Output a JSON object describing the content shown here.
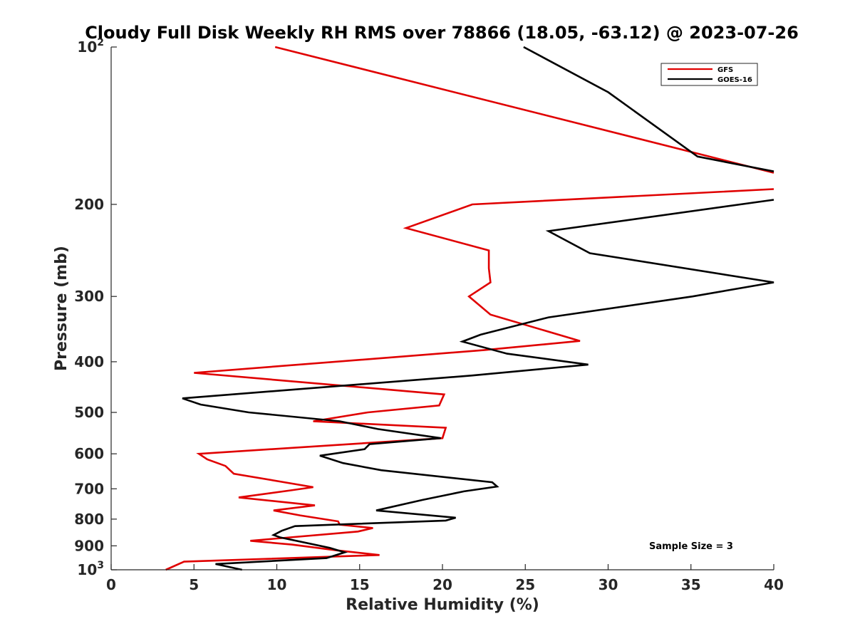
{
  "chart_data": {
    "type": "line",
    "title": "Cloudy Full Disk Weekly RH RMS over 78866 (18.05, -63.12) @ 2023-07-26",
    "xlabel": "Relative Humidity (%)",
    "ylabel": "Pressure (mb)",
    "xlim": [
      0,
      40
    ],
    "ylim": [
      100,
      1000
    ],
    "yscale": "log",
    "y_direction": "reverse",
    "x_ticks": [
      "0",
      "5",
      "10",
      "15",
      "20",
      "25",
      "30",
      "35",
      "40"
    ],
    "x_tick_values": [
      0,
      5,
      10,
      15,
      20,
      25,
      30,
      35,
      40
    ],
    "y_ticks": [
      {
        "value": 100,
        "base": "10",
        "exp": "2"
      },
      {
        "value": 200,
        "label": "200"
      },
      {
        "value": 300,
        "label": "300"
      },
      {
        "value": 400,
        "label": "400"
      },
      {
        "value": 500,
        "label": "500"
      },
      {
        "value": 600,
        "label": "600"
      },
      {
        "value": 700,
        "label": "700"
      },
      {
        "value": 800,
        "label": "800"
      },
      {
        "value": 900,
        "label": "900"
      },
      {
        "value": 1000,
        "base": "10",
        "exp": "3"
      }
    ],
    "legend_position": "top-right",
    "annotation": "Sample Size = 3",
    "series": [
      {
        "name": "GFS",
        "color": "#e00000",
        "x": [
          9.9,
          40.0,
          null,
          40.0,
          21.8,
          17.8,
          22.8,
          22.8,
          22.9,
          21.6,
          22.9,
          28.3,
          22.5,
          5.0,
          20.1,
          19.8,
          15.5,
          12.2,
          20.2,
          20.0,
          5.3,
          5.8,
          6.9,
          7.4,
          12.2,
          10.8,
          7.7,
          12.3,
          9.8,
          11.4,
          13.7,
          13.8,
          15.8,
          14.9,
          8.4,
          10.9,
          13.6,
          16.2,
          4.4,
          3.3
        ],
        "y": [
          100,
          174,
          null,
          187,
          200,
          222,
          245,
          265,
          282,
          300,
          325,
          365,
          380,
          420,
          462,
          485,
          500,
          520,
          535,
          560,
          600,
          615,
          633,
          655,
          695,
          705,
          727,
          753,
          770,
          787,
          808,
          820,
          832,
          845,
          880,
          895,
          918,
          937,
          965,
          1000
        ]
      },
      {
        "name": "GOES-16",
        "color": "#000000",
        "x": [
          24.9,
          30.0,
          35.4,
          40.0,
          null,
          40.0,
          26.4,
          28.9,
          40.0,
          35.1,
          26.4,
          22.3,
          21.2,
          23.9,
          28.8,
          21.8,
          4.3,
          5.4,
          8.3,
          13.8,
          16.1,
          19.9,
          15.6,
          15.3,
          12.6,
          14.0,
          16.3,
          23.0,
          23.3,
          21.3,
          18.8,
          16.0,
          20.8,
          20.2,
          11.1,
          10.3,
          9.8,
          10.2,
          13.2,
          14.1,
          13.0,
          6.3,
          7.9
        ],
        "y": [
          100,
          122,
          162,
          173,
          null,
          196,
          225,
          248,
          282,
          300,
          329,
          355,
          366,
          386,
          405,
          425,
          470,
          483,
          500,
          520,
          538,
          560,
          575,
          588,
          605,
          625,
          645,
          680,
          693,
          708,
          735,
          770,
          795,
          805,
          825,
          842,
          858,
          867,
          908,
          926,
          950,
          975,
          1000
        ]
      }
    ]
  }
}
